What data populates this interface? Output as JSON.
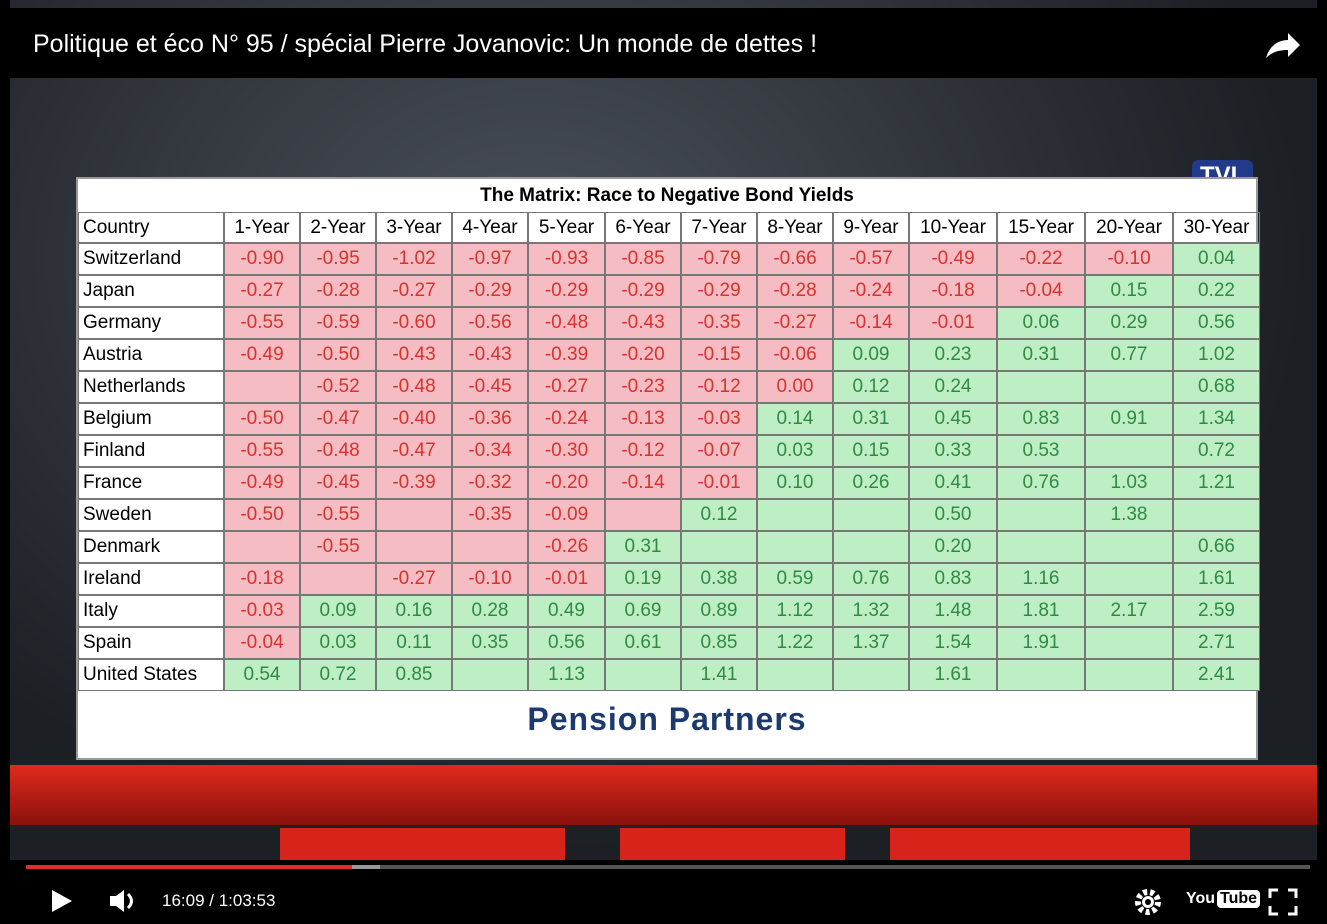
{
  "header": {
    "title": "Politique et éco N° 95 / spécial Pierre Jovanovic: Un monde de dettes !"
  },
  "table": {
    "title": "The Matrix:  Race to Negative Bond Yields",
    "columns": [
      "Country",
      "1-Year",
      "2-Year",
      "3-Year",
      "4-Year",
      "5-Year",
      "6-Year",
      "7-Year",
      "8-Year",
      "9-Year",
      "10-Year",
      "15-Year",
      "20-Year",
      "30-Year"
    ],
    "rows": [
      [
        "Switzerland",
        "-0.90",
        "-0.95",
        "-1.02",
        "-0.97",
        "-0.93",
        "-0.85",
        "-0.79",
        "-0.66",
        "-0.57",
        "-0.49",
        "-0.22",
        "-0.10",
        "0.04"
      ],
      [
        "Japan",
        "-0.27",
        "-0.28",
        "-0.27",
        "-0.29",
        "-0.29",
        "-0.29",
        "-0.29",
        "-0.28",
        "-0.24",
        "-0.18",
        "-0.04",
        "0.15",
        "0.22"
      ],
      [
        "Germany",
        "-0.55",
        "-0.59",
        "-0.60",
        "-0.56",
        "-0.48",
        "-0.43",
        "-0.35",
        "-0.27",
        "-0.14",
        "-0.01",
        "0.06",
        "0.29",
        "0.56"
      ],
      [
        "Austria",
        "-0.49",
        "-0.50",
        "-0.43",
        "-0.43",
        "-0.39",
        "-0.20",
        "-0.15",
        "-0.06",
        "0.09",
        "0.23",
        "0.31",
        "0.77",
        "1.02"
      ],
      [
        "Netherlands",
        null,
        "-0.52",
        "-0.48",
        "-0.45",
        "-0.27",
        "-0.23",
        "-0.12",
        "0.00",
        "0.12",
        "0.24",
        null,
        null,
        "0.68"
      ],
      [
        "Belgium",
        "-0.50",
        "-0.47",
        "-0.40",
        "-0.36",
        "-0.24",
        "-0.13",
        "-0.03",
        "0.14",
        "0.31",
        "0.45",
        "0.83",
        "0.91",
        "1.34"
      ],
      [
        "Finland",
        "-0.55",
        "-0.48",
        "-0.47",
        "-0.34",
        "-0.30",
        "-0.12",
        "-0.07",
        "0.03",
        "0.15",
        "0.33",
        "0.53",
        null,
        "0.72"
      ],
      [
        "France",
        "-0.49",
        "-0.45",
        "-0.39",
        "-0.32",
        "-0.20",
        "-0.14",
        "-0.01",
        "0.10",
        "0.26",
        "0.41",
        "0.76",
        "1.03",
        "1.21"
      ],
      [
        "Sweden",
        "-0.50",
        "-0.55",
        null,
        "-0.35",
        "-0.09",
        null,
        "0.12",
        null,
        null,
        "0.50",
        null,
        "1.38",
        null
      ],
      [
        "Denmark",
        null,
        "-0.55",
        null,
        null,
        "-0.26",
        "0.31",
        null,
        null,
        null,
        "0.20",
        null,
        null,
        "0.66"
      ],
      [
        "Ireland",
        "-0.18",
        null,
        "-0.27",
        "-0.10",
        "-0.01",
        "0.19",
        "0.38",
        "0.59",
        "0.76",
        "0.83",
        "1.16",
        null,
        "1.61"
      ],
      [
        "Italy",
        "-0.03",
        "0.09",
        "0.16",
        "0.28",
        "0.49",
        "0.69",
        "0.89",
        "1.12",
        "1.32",
        "1.48",
        "1.81",
        "2.17",
        "2.59"
      ],
      [
        "Spain",
        "-0.04",
        "0.03",
        "0.11",
        "0.35",
        "0.56",
        "0.61",
        "0.85",
        "1.22",
        "1.37",
        "1.54",
        "1.91",
        null,
        "2.71"
      ],
      [
        "United States",
        "0.54",
        "0.72",
        "0.85",
        null,
        "1.13",
        null,
        "1.41",
        null,
        null,
        "1.61",
        null,
        null,
        "2.41"
      ]
    ],
    "footer": "Pension Partners"
  },
  "logo": "TVL",
  "player": {
    "time": "16:09 / 1:03:53",
    "brand": [
      "You",
      "Tube"
    ]
  }
}
